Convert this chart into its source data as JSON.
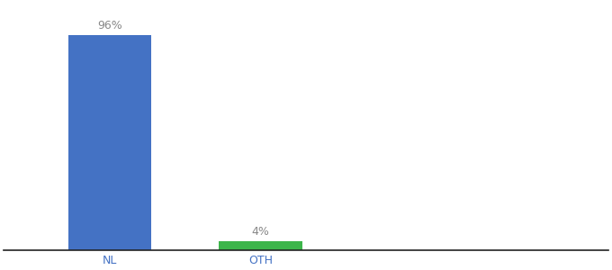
{
  "categories": [
    "NL",
    "OTH"
  ],
  "values": [
    96,
    4
  ],
  "bar_colors": [
    "#4472c4",
    "#3cb54a"
  ],
  "label_texts": [
    "96%",
    "4%"
  ],
  "label_color": "#888888",
  "tick_color": "#4472c4",
  "ylim": [
    0,
    110
  ],
  "background_color": "#ffffff",
  "label_fontsize": 9,
  "tick_fontsize": 9,
  "bar_width": 0.55,
  "xlim": [
    -0.2,
    3.8
  ]
}
